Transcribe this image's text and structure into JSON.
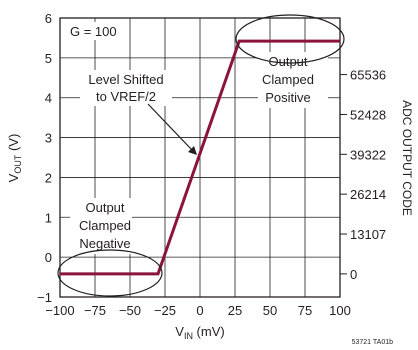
{
  "chart_data": {
    "type": "line",
    "xlabel_main": "V",
    "xlabel_sub": "IN",
    "xlabel_unit": " (mV)",
    "ylabel_main": "V",
    "ylabel_sub": "OUT",
    "ylabel_unit": " (V)",
    "y2label": "ADC OUTPUT CODE",
    "xlim": [
      -100,
      100
    ],
    "ylim": [
      -1,
      6
    ],
    "x_ticks": [
      -100,
      -75,
      -50,
      -25,
      0,
      25,
      50,
      75,
      100
    ],
    "x_tick_labels": [
      "−100",
      "−75",
      "−50",
      "−25",
      "0",
      "25",
      "50",
      "75",
      "100"
    ],
    "y_ticks": [
      -1,
      0,
      1,
      2,
      3,
      4,
      5,
      6
    ],
    "y_tick_labels": [
      "−1",
      "0",
      "1",
      "2",
      "3",
      "4",
      "5",
      "6"
    ],
    "y2_ticks": [
      0,
      1,
      2,
      3,
      4,
      5
    ],
    "y2_tick_labels": [
      "0",
      "13107",
      "26214",
      "39322",
      "52428",
      "65536"
    ],
    "grid": true,
    "series": [
      {
        "color": "#8b1538",
        "x": [
          -100,
          -30,
          28,
          100
        ],
        "y": [
          -0.42,
          -0.42,
          5.42,
          5.42
        ]
      }
    ],
    "annotations": {
      "gain": "G = 100",
      "level_line1": "Level Shifted",
      "level_line2": "to VREF/2",
      "pos_line1": "Output",
      "pos_line2": "Clamped",
      "pos_line3": "Positive",
      "neg_line1": "Output",
      "neg_line2": "Clamped",
      "neg_line3": "Negative"
    },
    "figure_id": "53721 TA01b"
  }
}
